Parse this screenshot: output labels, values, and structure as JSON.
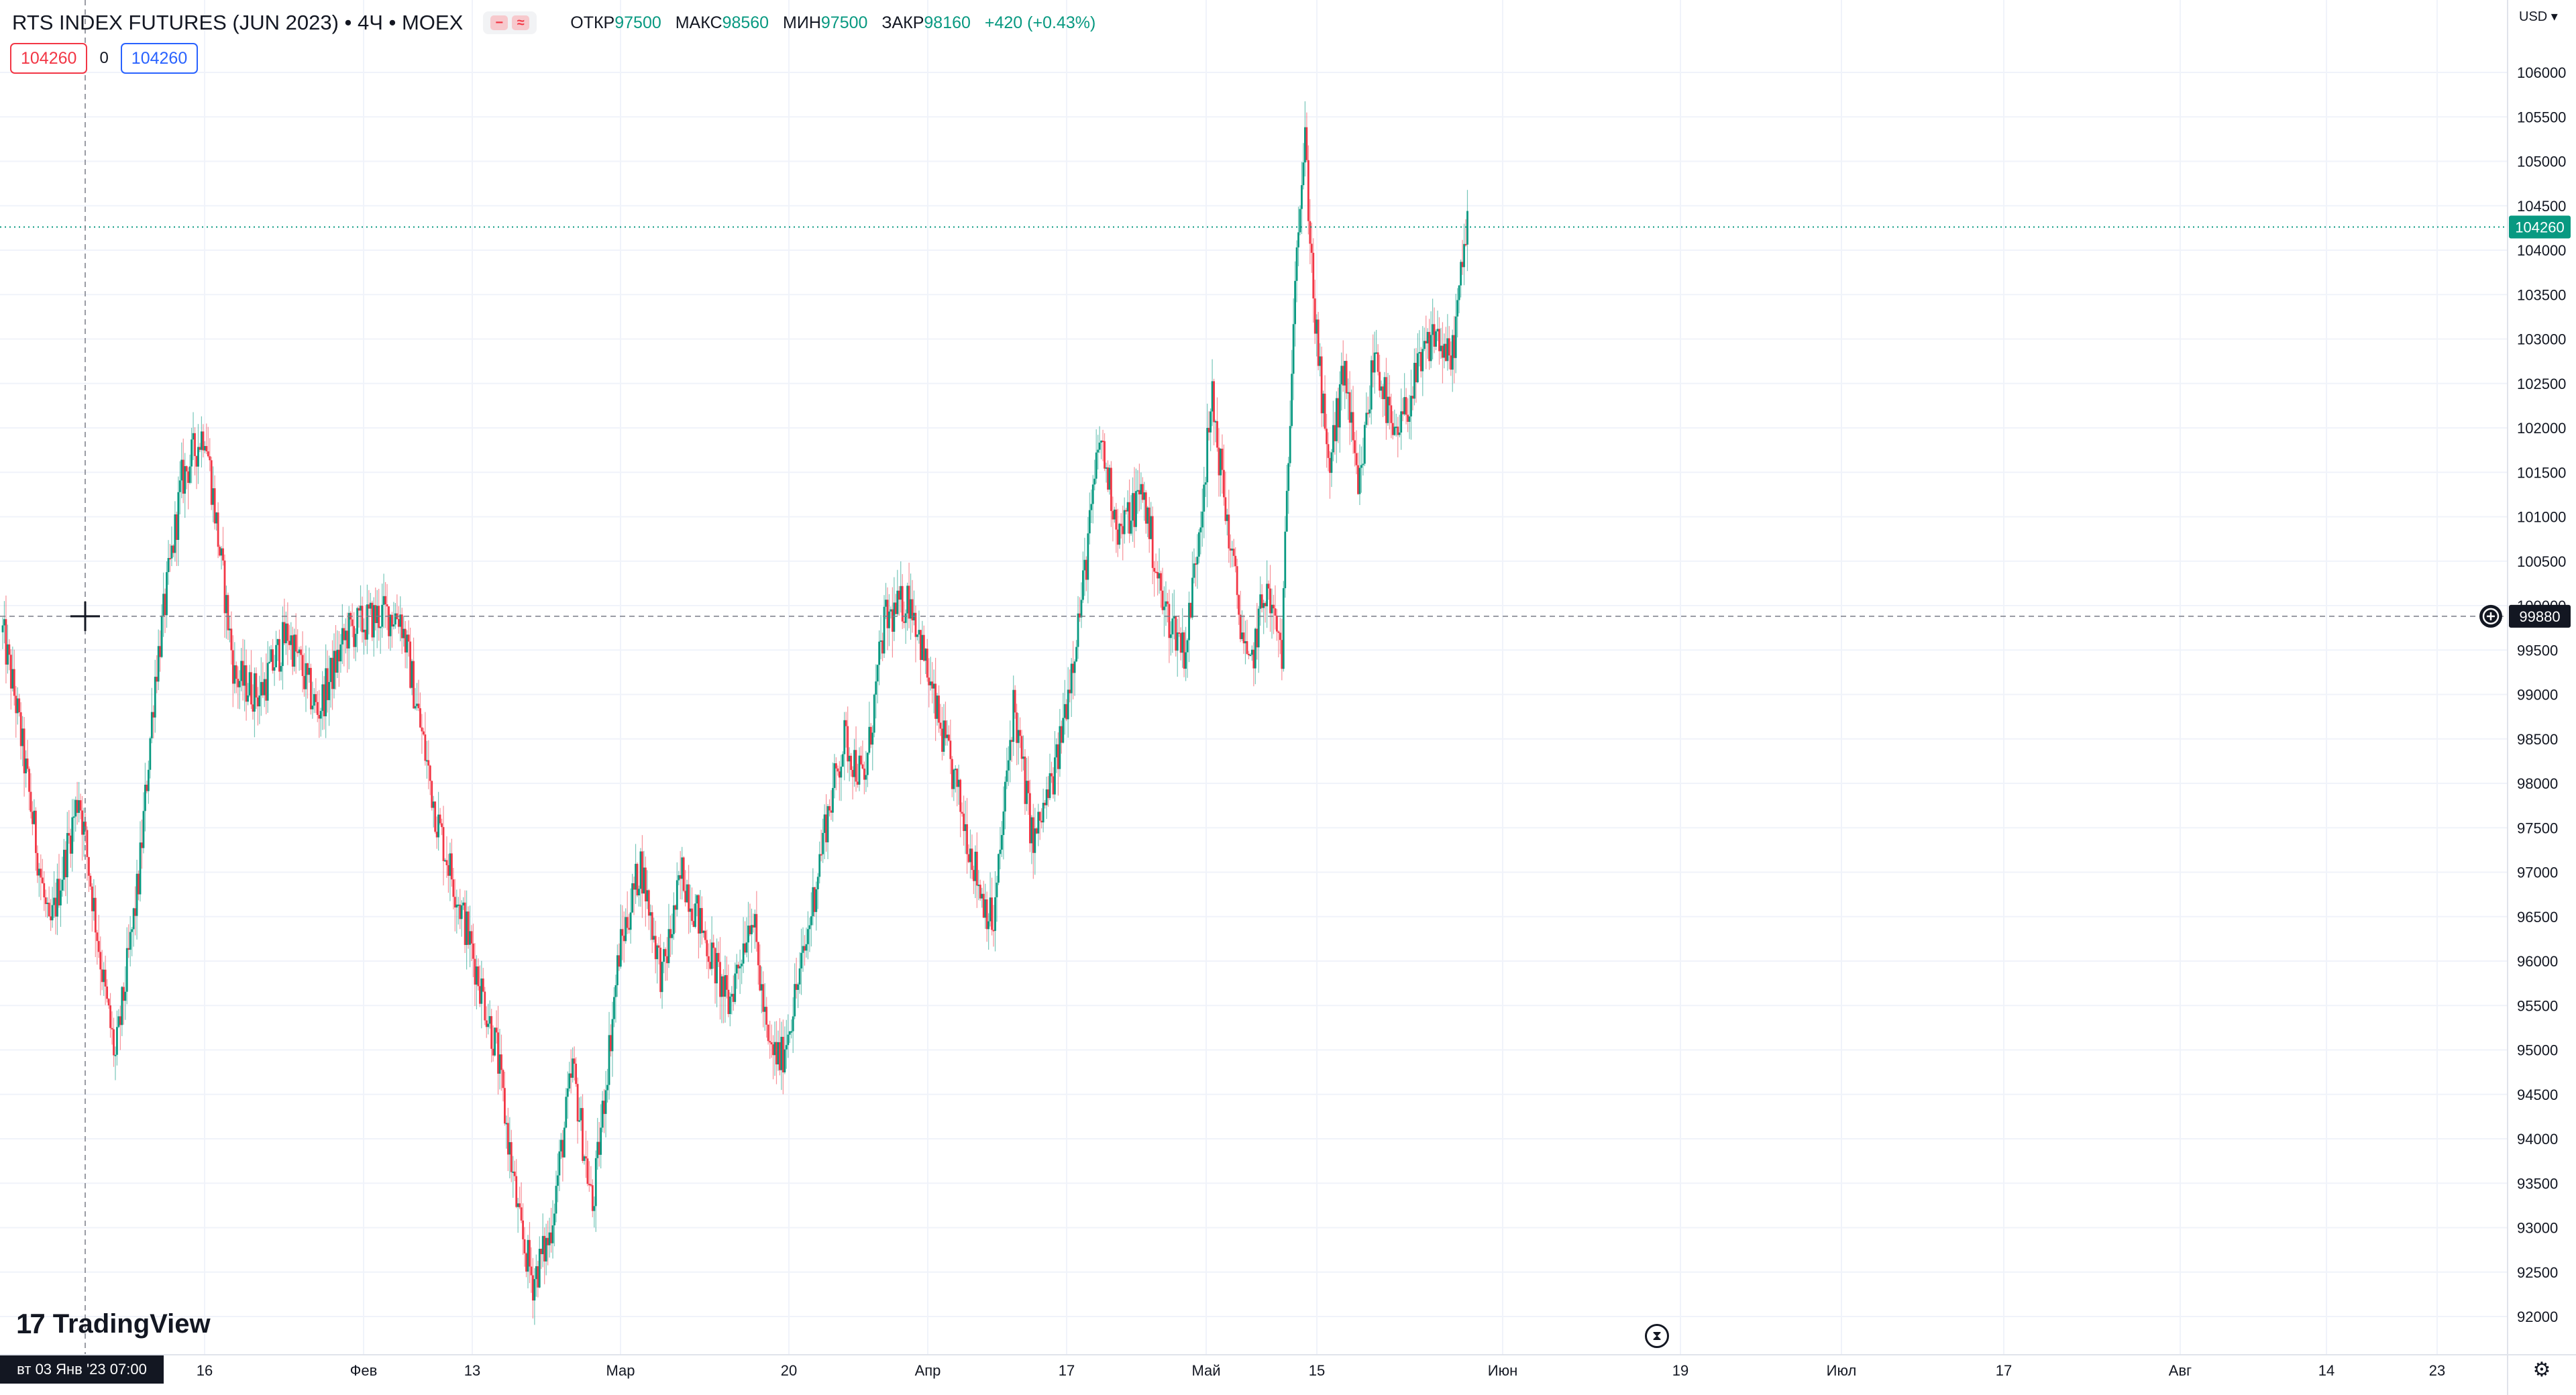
{
  "header": {
    "symbol": "RTS INDEX FUTURES (JUN 2023) • 4Ч • MOEX",
    "ohlc": [
      {
        "key": "ОТКР",
        "value": "97500"
      },
      {
        "key": "МАКС",
        "value": "98560"
      },
      {
        "key": "МИН",
        "value": "97500"
      },
      {
        "key": "ЗАКР",
        "value": "98160"
      }
    ],
    "change": "+420 (+0.43%)"
  },
  "trade": {
    "sell": "104260",
    "spread": "0",
    "buy": "104260"
  },
  "currency": "USD ▾",
  "logo_text": "TradingView",
  "crosshair_date": "вт 03 Янв '23   07:00",
  "icons": {
    "settings": "gear-icon",
    "timer": "hourglass-icon",
    "add": "plus-circle-icon"
  },
  "colors": {
    "up": "#089981",
    "down": "#f23645",
    "last_price": "#089981"
  },
  "chart_data": {
    "type": "candlestick",
    "x_ticks": [
      "16",
      "Фев",
      "13",
      "Мар",
      "20",
      "Апр",
      "17",
      "Май",
      "15",
      "Июн",
      "19",
      "Июл",
      "17",
      "Авг",
      "14",
      "23"
    ],
    "y_ticks": [
      "106000",
      "105500",
      "105000",
      "104500",
      "104000",
      "103500",
      "103000",
      "102500",
      "102000",
      "101500",
      "101000",
      "100500",
      "100000",
      "99500",
      "99000",
      "98500",
      "98000",
      "97500",
      "97000",
      "96500",
      "96000",
      "95500",
      "95000",
      "94500",
      "94000",
      "93500",
      "93000",
      "92500",
      "92000"
    ],
    "ylim": [
      91800,
      106600
    ],
    "last_price": "104260",
    "crosshair_price": "99880",
    "waypoints": [
      [
        0,
        99700
      ],
      [
        8,
        98900
      ],
      [
        28,
        96300
      ],
      [
        46,
        97900
      ],
      [
        62,
        95600
      ],
      [
        68,
        94900
      ],
      [
        82,
        96900
      ],
      [
        92,
        99200
      ],
      [
        108,
        101400
      ],
      [
        122,
        102000
      ],
      [
        140,
        99200
      ],
      [
        155,
        99000
      ],
      [
        172,
        99700
      ],
      [
        190,
        98800
      ],
      [
        208,
        99700
      ],
      [
        228,
        99900
      ],
      [
        240,
        99900
      ],
      [
        262,
        97600
      ],
      [
        282,
        96200
      ],
      [
        298,
        95000
      ],
      [
        312,
        93000
      ],
      [
        320,
        92400
      ],
      [
        330,
        92900
      ],
      [
        344,
        94800
      ],
      [
        356,
        93200
      ],
      [
        372,
        96100
      ],
      [
        385,
        97100
      ],
      [
        398,
        95800
      ],
      [
        410,
        97000
      ],
      [
        425,
        96200
      ],
      [
        438,
        95500
      ],
      [
        452,
        96600
      ],
      [
        462,
        95000
      ],
      [
        470,
        94900
      ],
      [
        484,
        96100
      ],
      [
        496,
        97500
      ],
      [
        508,
        98500
      ],
      [
        520,
        98000
      ],
      [
        532,
        99800
      ],
      [
        548,
        100100
      ],
      [
        562,
        98900
      ],
      [
        576,
        97900
      ],
      [
        590,
        96800
      ],
      [
        598,
        96400
      ],
      [
        610,
        98900
      ],
      [
        622,
        97300
      ],
      [
        636,
        98200
      ],
      [
        652,
        100200
      ],
      [
        662,
        101900
      ],
      [
        674,
        100800
      ],
      [
        688,
        101300
      ],
      [
        700,
        100000
      ],
      [
        714,
        99500
      ],
      [
        730,
        102300
      ],
      [
        742,
        100500
      ],
      [
        752,
        99200
      ],
      [
        762,
        100200
      ],
      [
        772,
        99500
      ],
      [
        780,
        103900
      ],
      [
        786,
        105200
      ],
      [
        792,
        103200
      ],
      [
        800,
        101500
      ],
      [
        810,
        102700
      ],
      [
        818,
        101200
      ],
      [
        828,
        102900
      ],
      [
        840,
        101800
      ],
      [
        852,
        102500
      ],
      [
        864,
        103100
      ],
      [
        874,
        102700
      ],
      [
        884,
        104300
      ]
    ]
  }
}
